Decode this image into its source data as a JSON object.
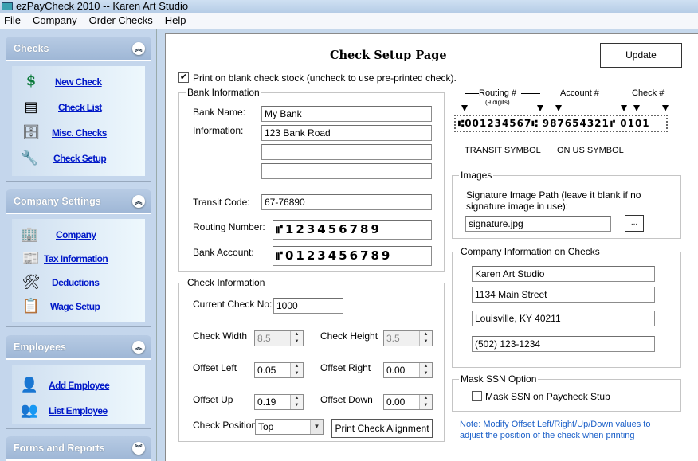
{
  "window": {
    "title": "ezPayCheck 2010 -- Karen Art Studio"
  },
  "menu": [
    "File",
    "Company",
    "Order Checks",
    "Help"
  ],
  "sidebar": {
    "checks": {
      "title": "Checks",
      "items": [
        "New Check",
        "Check List",
        "Misc. Checks",
        "Check Setup"
      ]
    },
    "company_settings": {
      "title": "Company Settings",
      "items": [
        "Company",
        "Tax Information",
        "Deductions",
        "Wage Setup"
      ]
    },
    "employees": {
      "title": "Employees",
      "items": [
        "Add Employee",
        "List Employee"
      ]
    },
    "forms": {
      "title": "Forms and Reports"
    }
  },
  "page": {
    "title": "Check Setup Page",
    "update_label": "Update",
    "print_blank_label": "Print on blank check stock (uncheck to use pre-printed check).",
    "print_blank_checked": true
  },
  "bank": {
    "legend": "Bank Information",
    "name_label": "Bank Name:",
    "name": "My Bank",
    "info_label": "Information:",
    "info": [
      "123 Bank Road",
      "",
      ""
    ],
    "transit_label": "Transit Code:",
    "transit": "67-76890",
    "routing_label": "Routing Number:",
    "routing": "⑈123456789",
    "account_label": "Bank Account:",
    "account": "⑈0123456789"
  },
  "check_info": {
    "legend": "Check Information",
    "current_label": "Current Check No:",
    "current": "1000",
    "width_label": "Check Width",
    "width": "8.5",
    "height_label": "Check Height",
    "height": "3.5",
    "left_label": "Offset Left",
    "left": "0.05",
    "right_label": "Offset Right",
    "right": "0.00",
    "up_label": "Offset Up",
    "up": "0.19",
    "down_label": "Offset Down",
    "down": "0.00",
    "position_label": "Check Position",
    "position": "Top",
    "align_label": "Print Check Alignment"
  },
  "micr": {
    "routing": "Routing #",
    "digits": "(9 digits)",
    "account": "Account #",
    "check": "Check #",
    "line": "⑆001234567⑆ 987654321⑈ 0101",
    "transit_symbol": "TRANSIT SYMBOL",
    "onus_symbol": "ON US SYMBOL"
  },
  "images": {
    "legend": "Images",
    "desc": "Signature Image Path (leave it blank if no signature image in use):",
    "path": "signature.jpg",
    "browse": "..."
  },
  "company_info": {
    "legend": "Company Information on Checks",
    "lines": [
      "Karen Art Studio",
      "1134 Main Street",
      "Louisville, KY 40211",
      "(502) 123-1234"
    ]
  },
  "mask": {
    "legend": "Mask SSN Option",
    "label": "Mask SSN on Paycheck Stub",
    "checked": false
  },
  "note": "Note: Modify Offset Left/Right/Up/Down values to adjust the position of  the check when printing",
  "colors": {
    "link": "#0018c8",
    "note": "#1a5fc8",
    "sidebar": "#c4d6ec"
  }
}
